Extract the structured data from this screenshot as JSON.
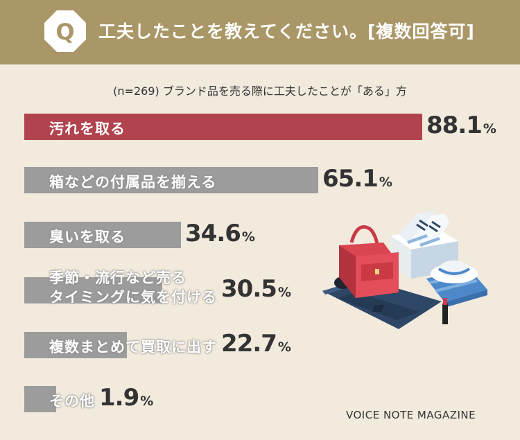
{
  "header": {
    "badge_letter": "Q",
    "question": "工夫したことを教えてください。[複数回答可]"
  },
  "subtitle": "(n=269) ブランド品を売る際に工夫したことが「ある」方",
  "chart_data": {
    "type": "bar",
    "orientation": "horizontal",
    "title": "工夫したことを教えてください。[複数回答可]",
    "subtitle": "(n=269) ブランド品を売る際に工夫したことが「ある」方",
    "unit": "%",
    "xlim": [
      0,
      100
    ],
    "grid": false,
    "legend": "none",
    "colors": {
      "highlight": "#b0434e",
      "default": "#9c9c9c"
    },
    "categories": [
      [
        "汚れを取る"
      ],
      [
        "箱などの付属品を揃える"
      ],
      [
        "臭いを取る"
      ],
      [
        "季節・流行など売る",
        "タイミングに気を付ける"
      ],
      [
        "複数まとめて買取に出す"
      ],
      [
        "その他"
      ]
    ],
    "values": [
      "88.1",
      "65.1",
      "34.6",
      "30.5",
      "22.7",
      "1.9"
    ]
  },
  "footer": "VOICE NOTE MAGAZINE"
}
